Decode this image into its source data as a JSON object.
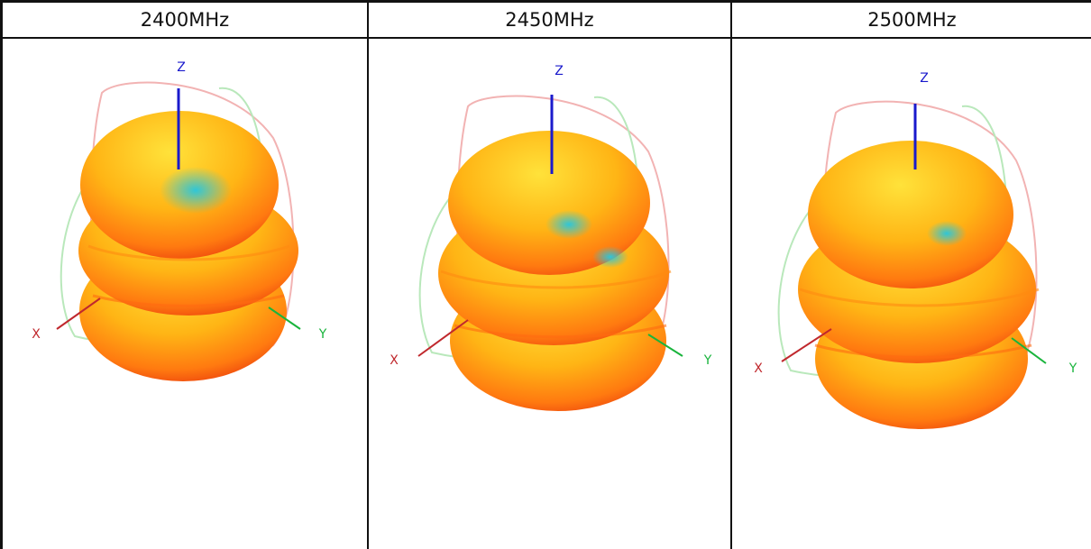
{
  "table": {
    "headers": [
      "2400MHz",
      "2450MHz",
      "2500MHz"
    ]
  },
  "axes": {
    "x_label": "X",
    "y_label": "Y",
    "z_label": "Z"
  },
  "colors": {
    "z_axis": "#1a1acc",
    "x_axis": "#c0282d",
    "y_axis": "#19b43c",
    "pattern_high": "#ffd21a",
    "pattern_mid": "#ff9a10",
    "pattern_low": "#e81e0e",
    "null_region": "#37c9d6",
    "ring_red": "#f2b3b3",
    "ring_green": "#b9e8bb"
  }
}
